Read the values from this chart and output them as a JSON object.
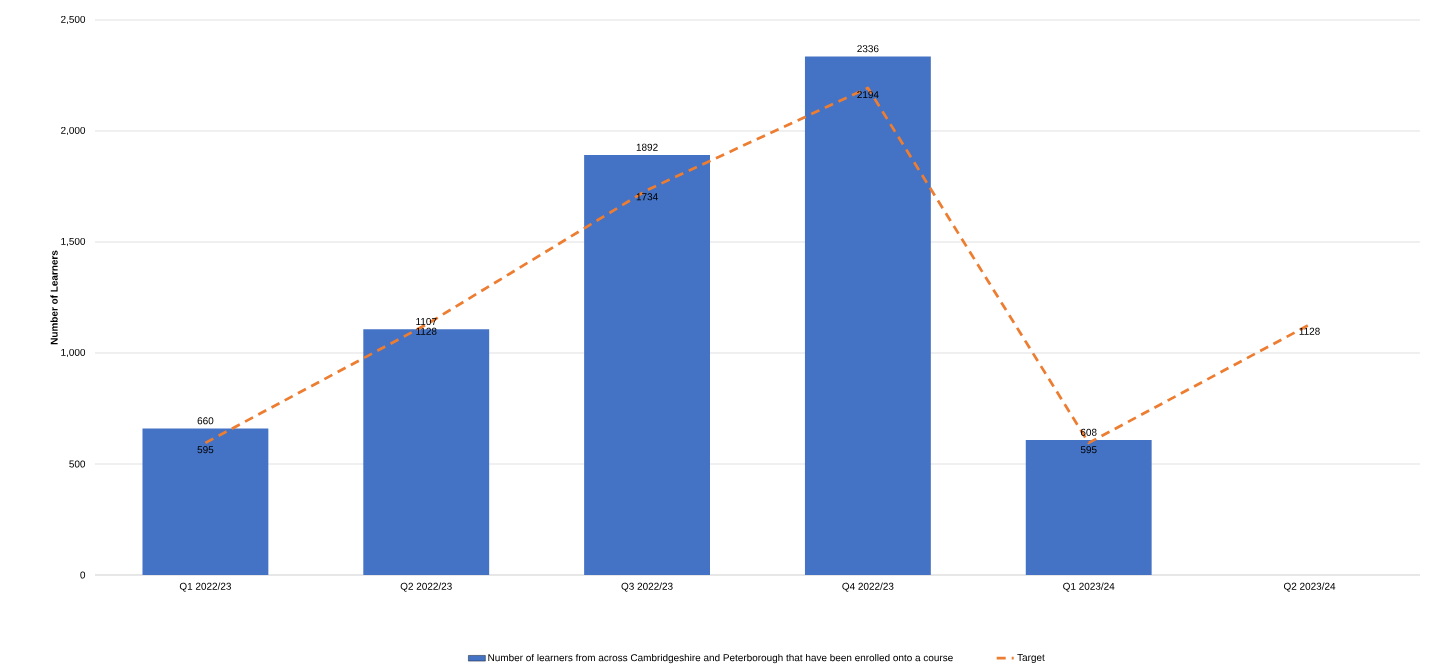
{
  "chart_data": {
    "type": "bar",
    "ylabel": "Number of Learners",
    "categories": [
      "Q1 2022/23",
      "Q2 2022/23",
      "Q3 2022/23",
      "Q4 2022/23",
      "Q1 2023/24",
      "Q2 2023/24"
    ],
    "series": [
      {
        "name": "Number of learners from across Cambridgeshire and Peterborough that have been enrolled onto a course",
        "color": "#4472c4",
        "values": [
          660,
          1107,
          1892,
          2336,
          608,
          null
        ]
      },
      {
        "name": "Target",
        "color": "#ed7d31",
        "type": "line",
        "line_style": "dashed",
        "values": [
          595,
          1128,
          1734,
          2194,
          595,
          1128
        ]
      }
    ],
    "ylim": [
      0,
      2500
    ],
    "yticks": [
      0,
      500,
      {
        "value": 1000,
        "label": "1,000"
      },
      {
        "value": 1500,
        "label": "1,500"
      },
      {
        "value": 2000,
        "label": "2,000"
      },
      {
        "value": 2500,
        "label": "2,500"
      }
    ],
    "grid": "y",
    "legend": "bottom",
    "data_labels": true
  }
}
